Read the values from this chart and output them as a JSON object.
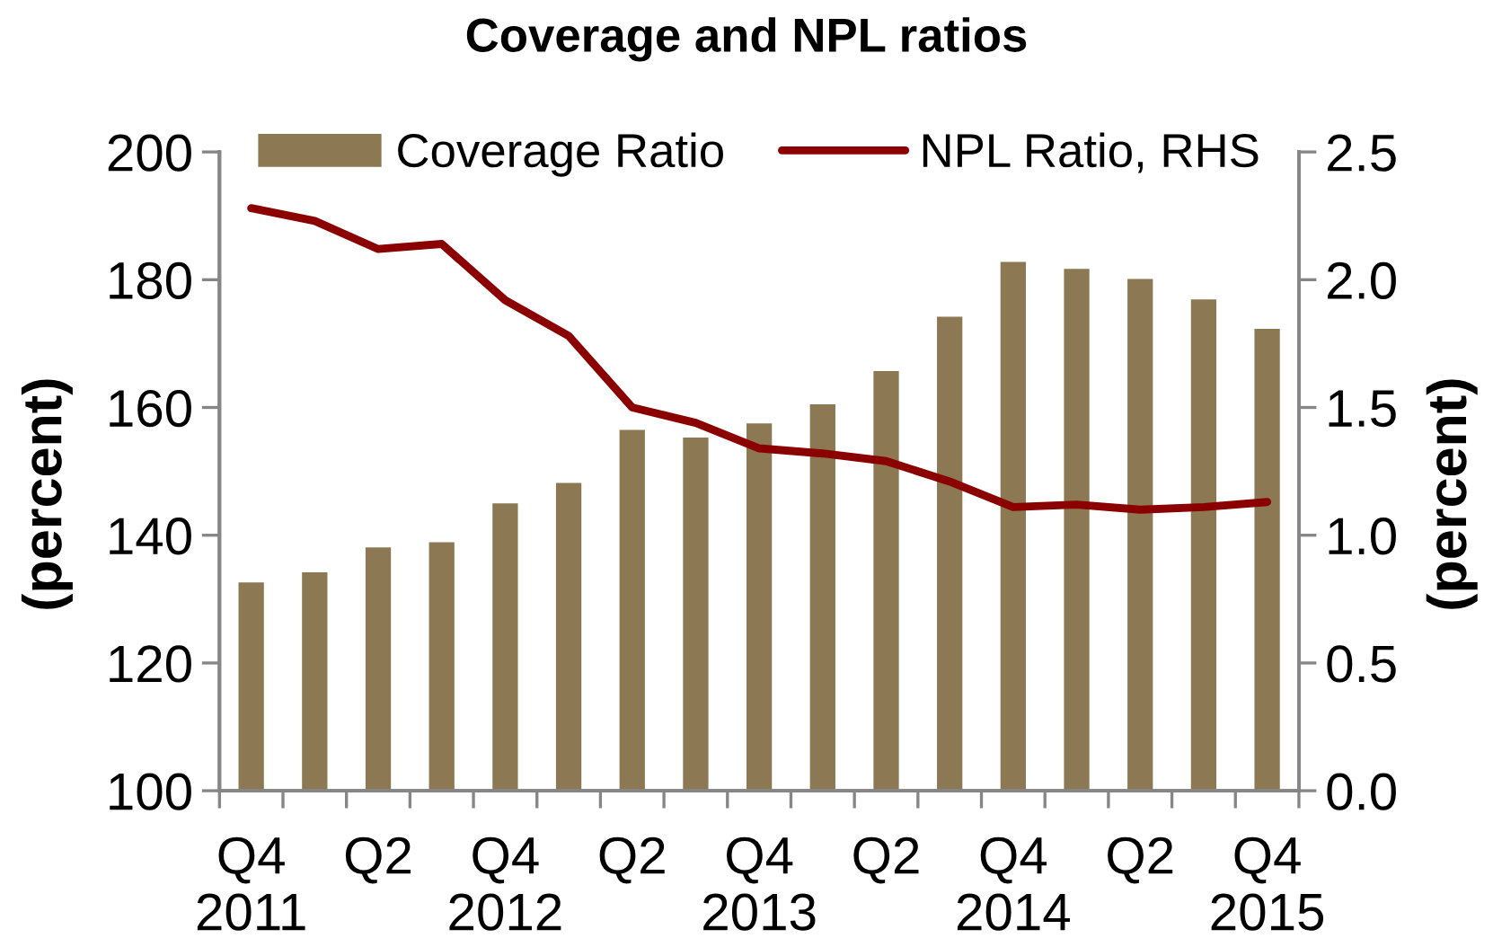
{
  "chart_data": {
    "type": "bar",
    "title": "Coverage and NPL ratios",
    "categories": [
      "Q4\n2011",
      null,
      "Q2",
      null,
      "Q4\n2012",
      null,
      "Q2",
      null,
      "Q4\n2013",
      null,
      "Q2",
      null,
      "Q4\n2014",
      null,
      "Q2",
      null,
      "Q4\n2015"
    ],
    "series": [
      {
        "name": "Coverage Ratio",
        "color": "#8c7853",
        "values": [
          132.6,
          134.2,
          138.1,
          138.9,
          145.0,
          148.2,
          156.5,
          155.3,
          157.5,
          160.5,
          165.7,
          174.2,
          182.8,
          181.7,
          180.1,
          176.9,
          172.3
        ]
      },
      {
        "name": "NPL Ratio, RHS",
        "type": "line",
        "axis": "y2",
        "color": "#8b0000",
        "line_style": "solid",
        "values": [
          2.28,
          2.23,
          2.12,
          2.14,
          1.92,
          1.78,
          1.5,
          1.44,
          1.34,
          1.32,
          1.29,
          1.21,
          1.11,
          1.12,
          1.1,
          1.11,
          1.13
        ]
      }
    ],
    "ylabel": "(percent)",
    "y2label": "(percent)",
    "ylim": [
      100,
      200
    ],
    "yticks": [
      100,
      120,
      140,
      160,
      180,
      200
    ],
    "y2lim": [
      0,
      2.5
    ],
    "y2ticks": [
      {
        "value": 0,
        "label": "0.0"
      },
      0.5,
      {
        "value": 1,
        "label": "1.0"
      },
      1.5,
      {
        "value": 2,
        "label": "2.0"
      },
      2.5
    ],
    "marker": "none",
    "grid": false,
    "legend": "top"
  }
}
